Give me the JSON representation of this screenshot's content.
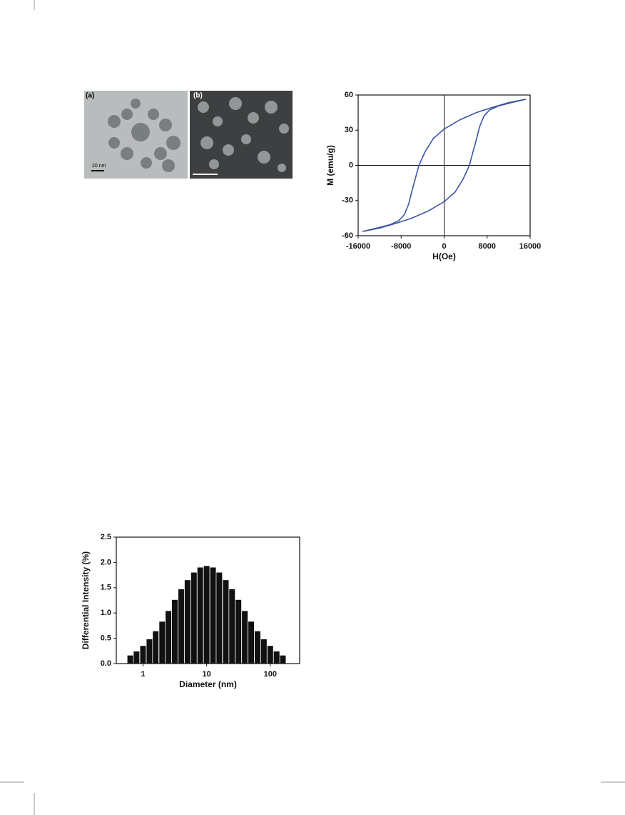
{
  "images": {
    "panels": [
      {
        "label": "(a)",
        "scale_bar": "20 nm"
      },
      {
        "label": "(b)"
      }
    ]
  },
  "chart_data": [
    {
      "type": "line",
      "xlabel": "H(Oe)",
      "ylabel": "M (emu/g)",
      "color": "#3a56a8",
      "x": [
        15200,
        12000,
        9000,
        6000,
        3000,
        0,
        -2000,
        -3500,
        -4700,
        -5400,
        -6000,
        -6600,
        -7400,
        -8400,
        -10000,
        -12500,
        -15200,
        -12000,
        -9000,
        -6000,
        -3000,
        0,
        2000,
        3500,
        4700,
        5400,
        6000,
        6600,
        7400,
        8400,
        10000,
        12500,
        15200
      ],
      "values": [
        56.4,
        53.5,
        49.5,
        45,
        39,
        31,
        23,
        12,
        0,
        -12,
        -22,
        -33,
        -42,
        -47,
        -50.5,
        -53.5,
        -56.4,
        -53.5,
        -49.5,
        -45,
        -39,
        -31,
        -23,
        -12,
        0,
        12,
        22,
        33,
        42,
        47,
        50.5,
        53.5,
        56.4
      ],
      "xlim": [
        -16000,
        16000
      ],
      "xticks": [
        -16000,
        -8000,
        0,
        8000,
        16000
      ],
      "ylim": [
        -60,
        60
      ],
      "yticks": [
        -60,
        -30,
        0,
        30,
        60
      ]
    },
    {
      "type": "bar",
      "xlabel": "Diameter (nm)",
      "ylabel": "Differential Intensity (%)",
      "color": "#111111",
      "xlog": true,
      "x": [
        0.63,
        0.79,
        1,
        1.26,
        1.58,
        2,
        2.51,
        3.16,
        3.98,
        5.01,
        6.31,
        7.94,
        10,
        12.6,
        15.8,
        20,
        25.1,
        31.6,
        39.8,
        50.1,
        63.1,
        79.4,
        100,
        126,
        158
      ],
      "values": [
        0.16,
        0.24,
        0.35,
        0.48,
        0.64,
        0.83,
        1.04,
        1.26,
        1.47,
        1.65,
        1.8,
        1.9,
        1.93,
        1.9,
        1.8,
        1.65,
        1.47,
        1.26,
        1.04,
        0.83,
        0.64,
        0.48,
        0.35,
        0.24,
        0.16
      ],
      "xlim": [
        0.38,
        290
      ],
      "xticks": [
        1,
        10,
        100
      ],
      "ylim": [
        0,
        2.5
      ],
      "yticks": [
        {
          "value": 0,
          "label": "0.0"
        },
        0.5,
        {
          "value": 1,
          "label": "1.0"
        },
        1.5,
        {
          "value": 2,
          "label": "2.0"
        },
        2.5
      ]
    }
  ]
}
